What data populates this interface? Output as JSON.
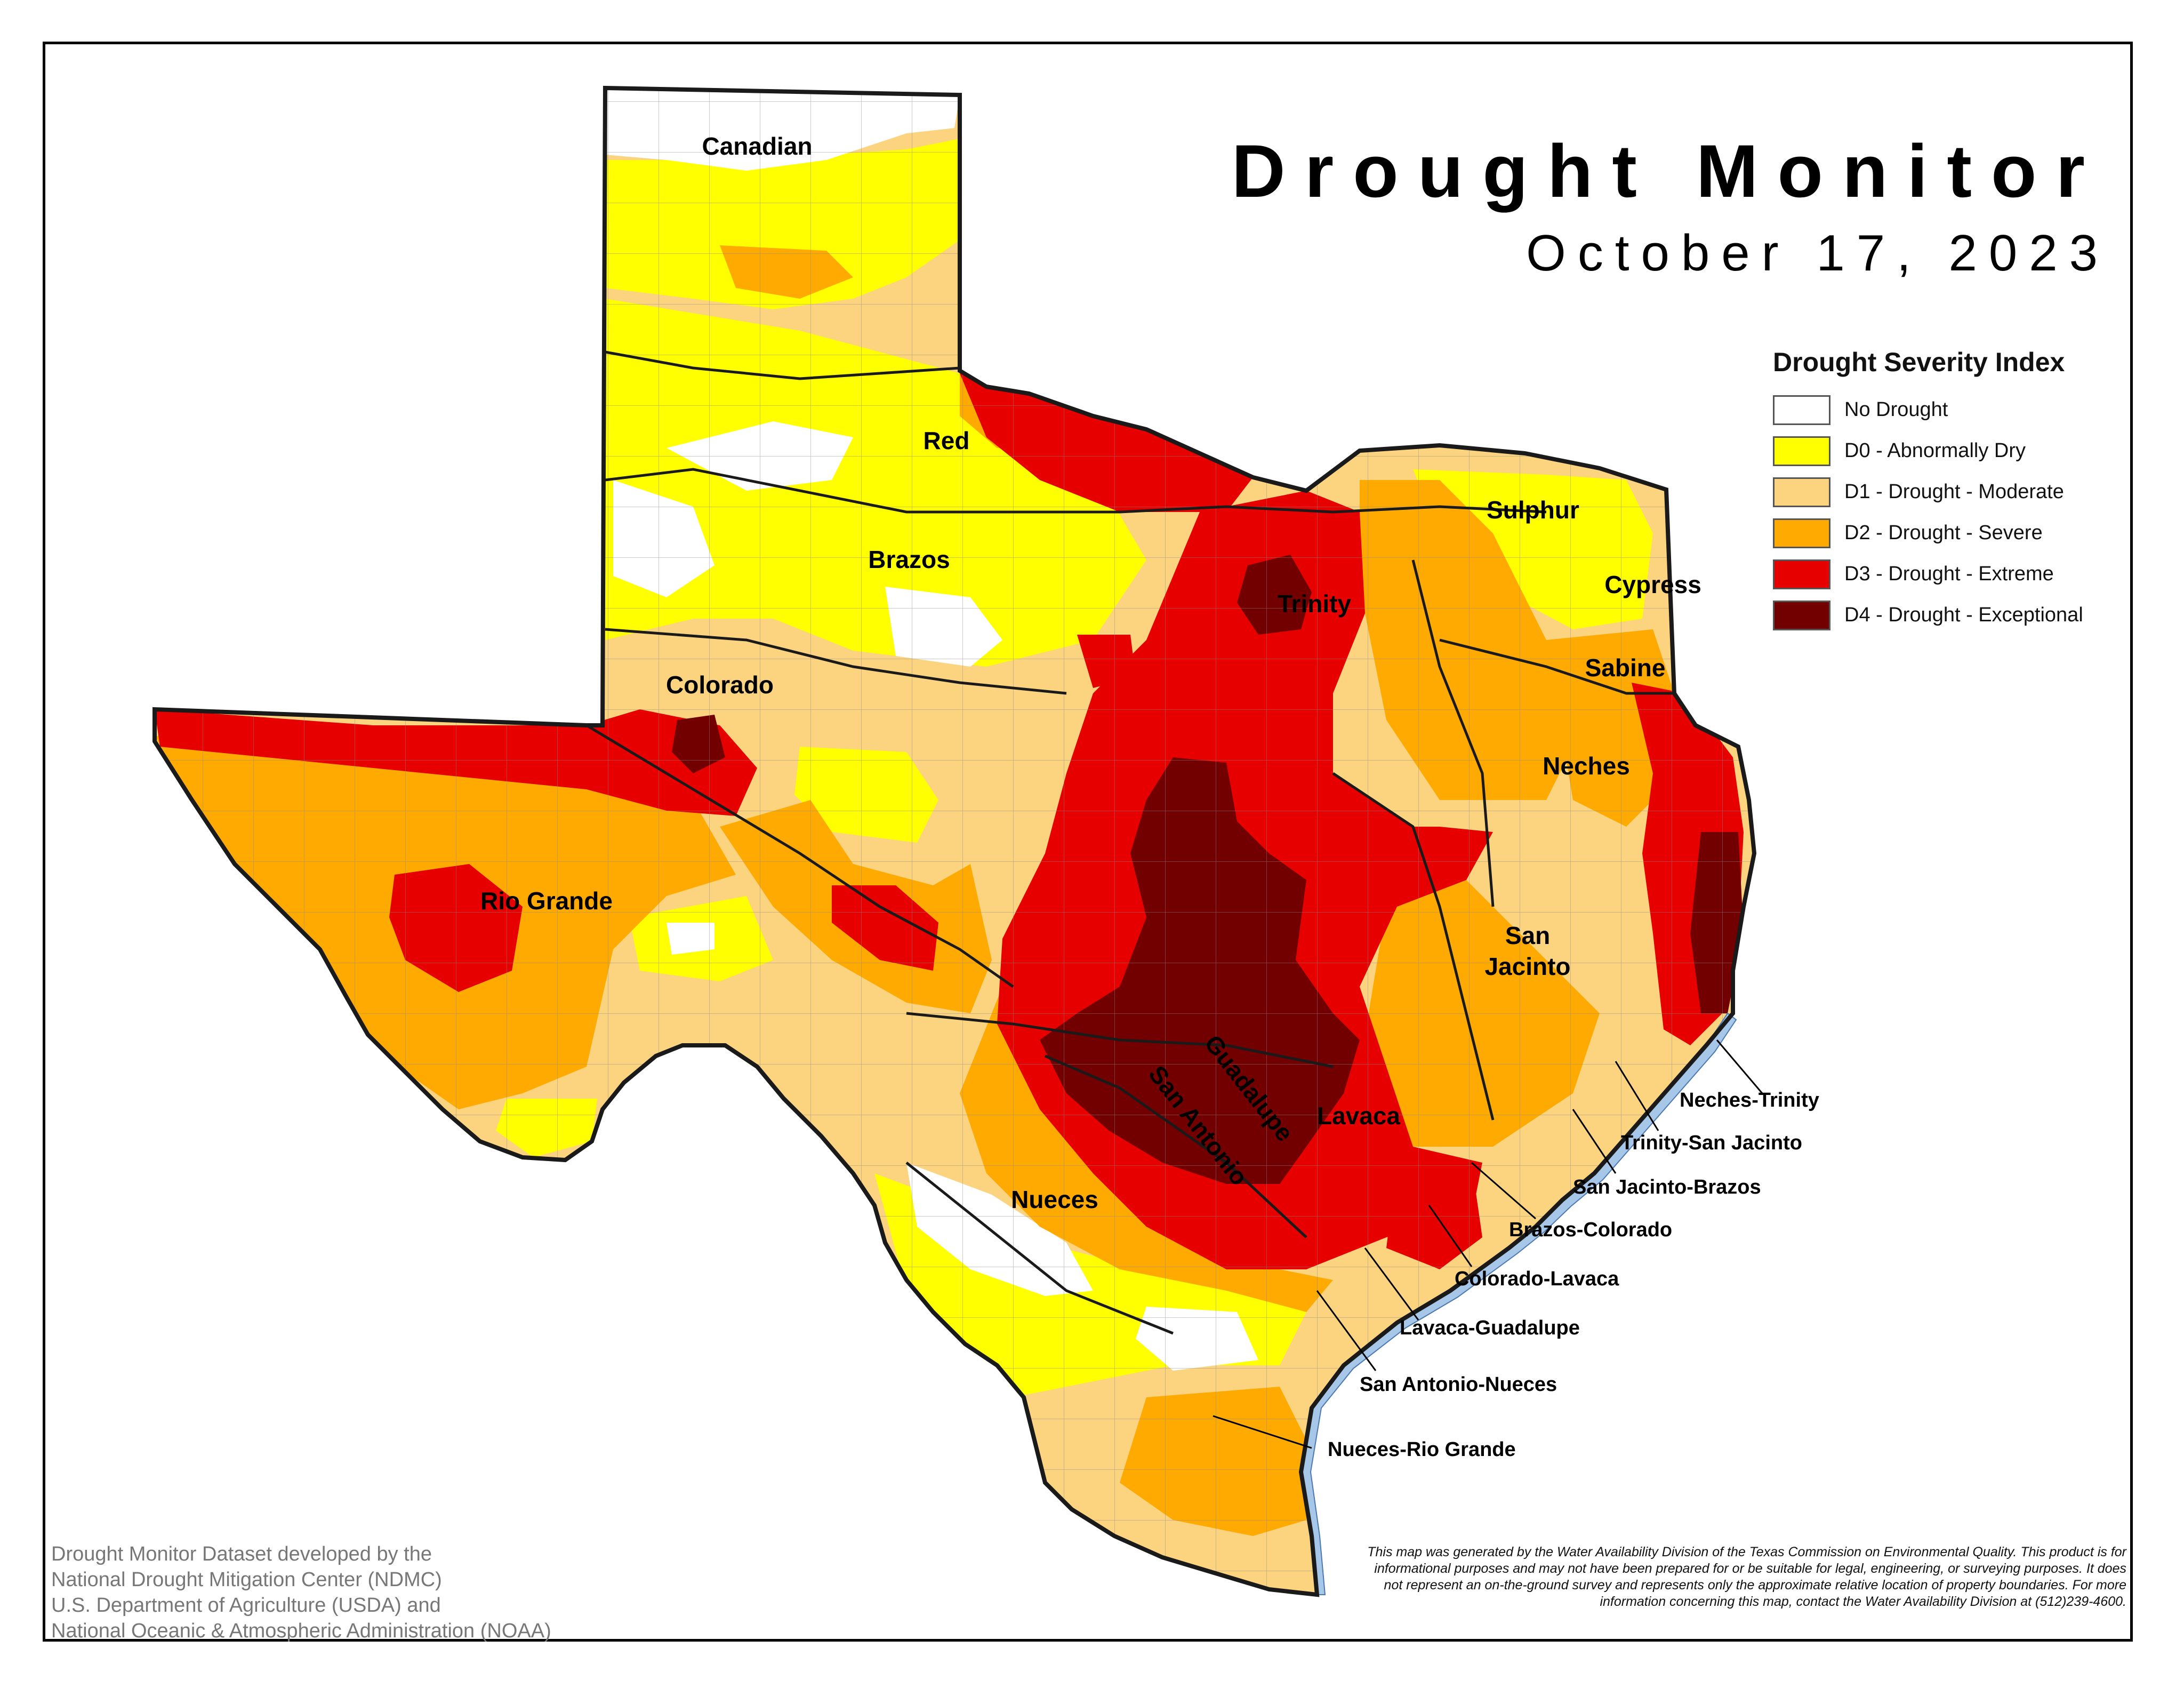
{
  "title": "Drought Monitor",
  "subtitle": "October 17, 2023",
  "legend": {
    "title": "Drought Severity Index",
    "items": [
      {
        "label": "No Drought",
        "color": "#ffffff"
      },
      {
        "label": "D0 - Abnormally Dry",
        "color": "#ffff00"
      },
      {
        "label": "D1 - Drought - Moderate",
        "color": "#fcd37f"
      },
      {
        "label": "D2 - Drought - Severe",
        "color": "#ffaa00"
      },
      {
        "label": "D3 - Drought - Extreme",
        "color": "#e60000"
      },
      {
        "label": "D4 - Drought - Exceptional",
        "color": "#730000"
      }
    ]
  },
  "basins": {
    "canadian": "Canadian",
    "red": "Red",
    "brazos": "Brazos",
    "colorado": "Colorado",
    "rio_grande": "Rio Grande",
    "trinity": "Trinity",
    "sulphur": "Sulphur",
    "cypress": "Cypress",
    "sabine": "Sabine",
    "neches": "Neches",
    "san_jacinto_1": "San",
    "san_jacinto_2": "Jacinto",
    "guadalupe": "Guadalupe",
    "san_antonio": "San Antonio",
    "lavaca": "Lavaca",
    "nueces": "Nueces"
  },
  "coastal_basins": {
    "neches_trinity": "Neches-Trinity",
    "trinity_san_jacinto": "Trinity-San Jacinto",
    "san_jacinto_brazos": "San Jacinto-Brazos",
    "brazos_colorado": "Brazos-Colorado",
    "colorado_lavaca": "Colorado-Lavaca",
    "lavaca_guadalupe": "Lavaca-Guadalupe",
    "san_antonio_nueces": "San Antonio-Nueces",
    "nueces_rio_grande": "Nueces-Rio Grande"
  },
  "credit": [
    "Drought Monitor Dataset developed by the",
    "National Drought Mitigation Center (NDMC)",
    "U.S. Department of Agriculture (USDA) and",
    "National Oceanic & Atmospheric Administration (NOAA)"
  ],
  "disclaimer": "This map was generated by the Water Availability Division of the Texas Commission on Environmental Quality. This product is for informational purposes and may not have been prepared for or be suitable for legal, engineering, or surveying purposes. It does not represent an on-the-ground survey and represents only the approximate relative location of property boundaries. For more information concerning this map, contact the Water Availability Division at (512)239-4600."
}
